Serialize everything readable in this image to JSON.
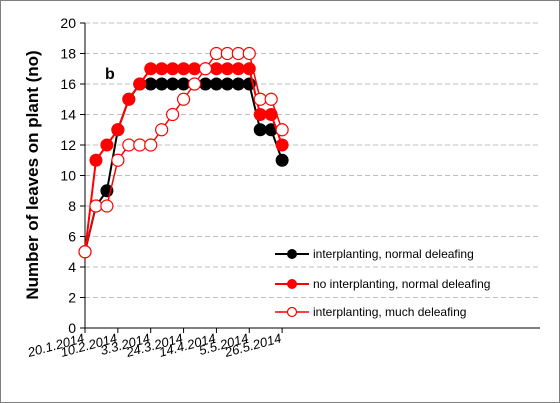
{
  "chart_data": {
    "type": "line",
    "panel_label": "b",
    "ylabel": "Number of leaves on plant (no)",
    "xlabel": "",
    "ylim": [
      0,
      20
    ],
    "y_ticks": [
      0,
      2,
      4,
      6,
      8,
      10,
      12,
      14,
      16,
      18,
      20
    ],
    "x_tick_labels": [
      "20.1.2014",
      "10.2.2014",
      "3.3.2014",
      "24.3.2014",
      "14.4.2014",
      "5.5.2014",
      "26.5.2014"
    ],
    "grid": "horizontal dashed",
    "legend_position": "bottom-right",
    "series": [
      {
        "name": "interplanting, normal deleafing",
        "color": "#000000",
        "marker": "filled-black",
        "x": [
          "2014-01-20",
          "2014-01-27",
          "2014-02-03",
          "2014-02-10",
          "2014-02-17",
          "2014-02-24",
          "2014-03-03",
          "2014-03-10",
          "2014-03-17",
          "2014-03-24",
          "2014-03-31",
          "2014-04-07",
          "2014-04-14",
          "2014-04-21",
          "2014-04-28",
          "2014-05-05",
          "2014-05-12",
          "2014-05-19",
          "2014-05-26"
        ],
        "values": [
          5,
          8,
          9,
          13,
          15,
          16,
          16,
          16,
          16,
          16,
          16,
          16,
          16,
          16,
          16,
          16,
          13,
          13,
          11
        ]
      },
      {
        "name": "no interplanting, normal deleafing",
        "color": "#ff0000",
        "marker": "filled-red",
        "x": [
          "2014-01-20",
          "2014-01-27",
          "2014-02-03",
          "2014-02-10",
          "2014-02-17",
          "2014-02-24",
          "2014-03-03",
          "2014-03-10",
          "2014-03-17",
          "2014-03-24",
          "2014-03-31",
          "2014-04-07",
          "2014-04-14",
          "2014-04-21",
          "2014-04-28",
          "2014-05-05",
          "2014-05-12",
          "2014-05-19",
          "2014-05-26"
        ],
        "values": [
          5,
          11,
          12,
          13,
          15,
          16,
          17,
          17,
          17,
          17,
          17,
          17,
          17,
          17,
          17,
          17,
          14,
          14,
          12
        ]
      },
      {
        "name": "interplanting, much deleafing",
        "color": "#ff0000",
        "marker": "open-red",
        "x": [
          "2014-01-20",
          "2014-01-27",
          "2014-02-03",
          "2014-02-10",
          "2014-02-17",
          "2014-02-24",
          "2014-03-03",
          "2014-03-10",
          "2014-03-17",
          "2014-03-24",
          "2014-03-31",
          "2014-04-07",
          "2014-04-14",
          "2014-04-21",
          "2014-04-28",
          "2014-05-05",
          "2014-05-12",
          "2014-05-19",
          "2014-05-26"
        ],
        "values": [
          5,
          8,
          8,
          11,
          12,
          12,
          12,
          13,
          14,
          15,
          16,
          17,
          18,
          18,
          18,
          18,
          15,
          15,
          13
        ]
      }
    ]
  }
}
